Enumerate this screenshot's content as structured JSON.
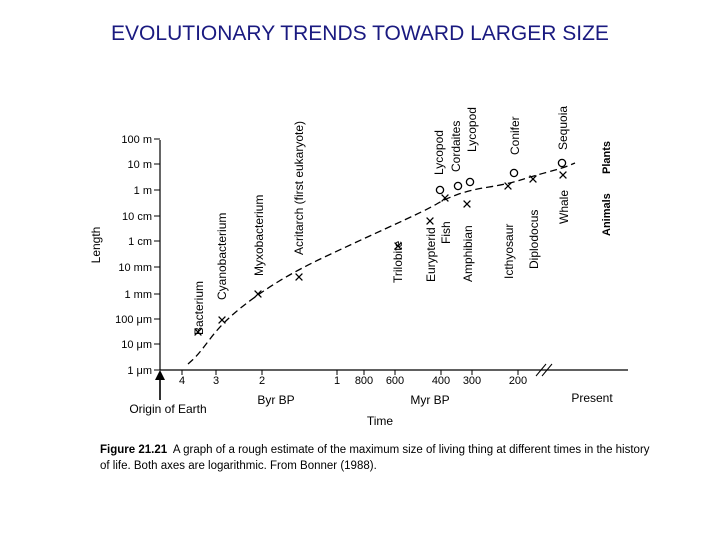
{
  "slide_title": "EVOLUTIONARY TRENDS TOWARD LARGER SIZE",
  "caption": {
    "figure_label": "Figure 21.21",
    "text": "A graph of a rough estimate of the maximum size of living thing at different times in the history of life. Both axes are logarithmic. From Bonner (1988)."
  },
  "chart_data": {
    "type": "scatter",
    "ylabel": "Length",
    "xlabel": "Time",
    "y_ticks": [
      "1 μm",
      "10 μm",
      "100 μm",
      "1 mm",
      "10 mm",
      "1 cm",
      "10 cm",
      "1 m",
      "10 m",
      "100 m"
    ],
    "x_ticks_byr": [
      "4",
      "3",
      "2",
      "1"
    ],
    "x_ticks_myr": [
      "800",
      "600",
      "400",
      "300",
      "200"
    ],
    "x_group_labels": {
      "byr": "Byr BP",
      "myr": "Myr BP",
      "present": "Present"
    },
    "origin_label": "Origin of Earth",
    "marker_legend": {
      "plants": "Plants",
      "animals": "Animals"
    },
    "series": [
      {
        "marker": "x",
        "points": [
          {
            "label": "Bacterium",
            "y": "10 μm"
          },
          {
            "label": "Cyanobacterium",
            "y": "100 μm"
          },
          {
            "label": "Myxobacterium",
            "y": "1 mm"
          },
          {
            "label": "Acritarch (first eukaryote)",
            "y": "10 mm"
          },
          {
            "label": "Trilobite",
            "y": "1 cm"
          },
          {
            "label": "Eurypterid",
            "y": "10 cm"
          },
          {
            "label": "Fish",
            "y": "1 m"
          },
          {
            "label": "Amphibian",
            "y": "10 cm"
          },
          {
            "label": "Icthyosaur",
            "y": "1 m"
          },
          {
            "label": "Diplodocus",
            "y": "10 m"
          },
          {
            "label": "Whale",
            "y": "10 m"
          }
        ]
      },
      {
        "marker": "o",
        "points": [
          {
            "label": "Lycopod",
            "y": "1 m"
          },
          {
            "label": "Cordaites",
            "y": "1 m"
          },
          {
            "label": "Lycopod",
            "y": "10 m"
          },
          {
            "label": "Conifer",
            "y": "10 m"
          },
          {
            "label": "Sequoia",
            "y": "100 m"
          }
        ]
      }
    ]
  }
}
